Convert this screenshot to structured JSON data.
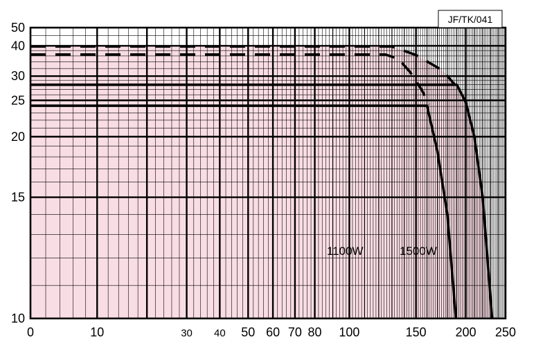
{
  "chart_data": {
    "type": "line",
    "code": "JF/TK/041",
    "x_axis": {
      "range": [
        0,
        250
      ],
      "scale": "log(x+25)",
      "tick_labels": [
        "0",
        "10",
        "30",
        "40",
        "50",
        "60",
        "70",
        "80",
        "100",
        "150",
        "200",
        "250"
      ],
      "tick_values": [
        0,
        10,
        30,
        40,
        50,
        60,
        70,
        80,
        100,
        150,
        200,
        250
      ]
    },
    "y_axis": {
      "range": [
        10,
        50
      ],
      "scale": "reciprocal",
      "tick_labels": [
        "10",
        "15",
        "20",
        "25",
        "30",
        "40",
        "50"
      ],
      "tick_values": [
        10,
        15,
        20,
        25,
        30,
        40,
        50
      ]
    },
    "grid": true,
    "shaded_region_color": "#f9dde4",
    "series": [
      {
        "name": "1100W",
        "style": "solid",
        "points": [
          [
            0,
            24.1
          ],
          [
            160,
            24.1
          ],
          [
            170,
            18.5
          ],
          [
            180,
            14
          ],
          [
            189,
            10
          ]
        ]
      },
      {
        "name": "1500W",
        "style": "solid",
        "points": [
          [
            0,
            28
          ],
          [
            190,
            28
          ],
          [
            200,
            24.7
          ],
          [
            210,
            20
          ],
          [
            220,
            15
          ],
          [
            232,
            10
          ]
        ]
      },
      {
        "name": "",
        "style": "dashed",
        "points": [
          [
            0,
            36.5
          ],
          [
            125,
            36.5
          ],
          [
            135,
            35
          ],
          [
            145,
            31
          ],
          [
            155,
            27
          ],
          [
            162,
            24.3
          ]
        ]
      },
      {
        "name": "",
        "style": "dashed",
        "points": [
          [
            0,
            39.7
          ],
          [
            130,
            39.7
          ],
          [
            150,
            36.3
          ],
          [
            175,
            31.5
          ],
          [
            188,
            28
          ]
        ]
      }
    ],
    "shaded_region": [
      [
        0,
        39.7
      ],
      [
        130,
        39.7
      ],
      [
        150,
        36.3
      ],
      [
        175,
        31.5
      ],
      [
        188,
        28
      ],
      [
        200,
        24.7
      ],
      [
        210,
        20
      ],
      [
        220,
        15
      ],
      [
        232,
        10
      ],
      [
        0,
        10
      ]
    ],
    "colors": {
      "line": "#000000",
      "grid": "#000000",
      "fill": "#f9dde4"
    }
  }
}
